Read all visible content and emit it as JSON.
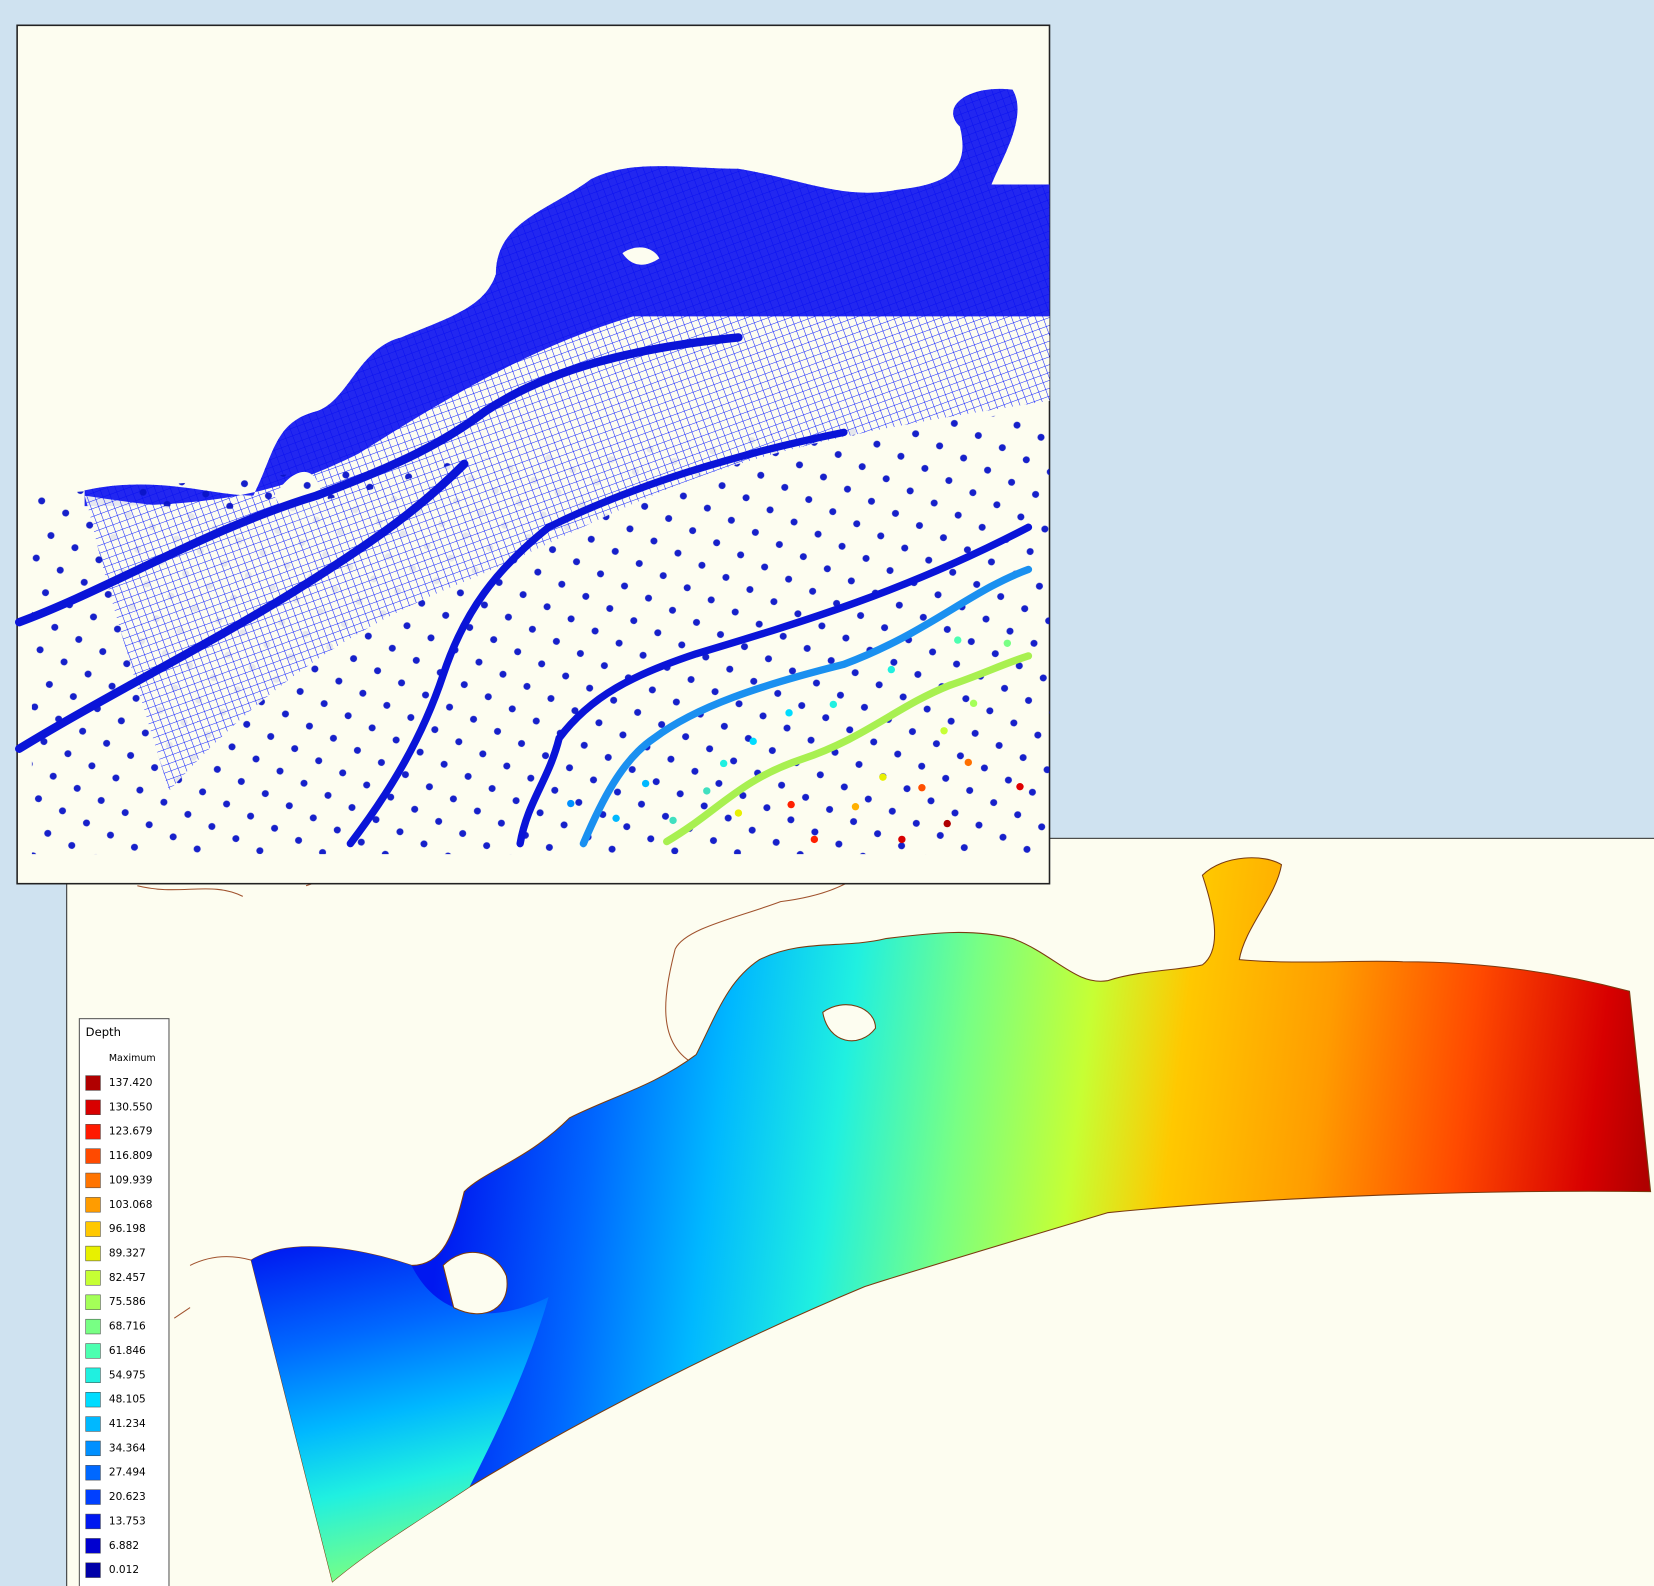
{
  "legend": {
    "title": "Depth",
    "header": "Maximum",
    "items": [
      {
        "label": "137.420",
        "color": "#b00000"
      },
      {
        "label": "130.550",
        "color": "#d80000"
      },
      {
        "label": "123.679",
        "color": "#ff1a00"
      },
      {
        "label": "116.809",
        "color": "#ff4a00"
      },
      {
        "label": "109.939",
        "color": "#ff7400"
      },
      {
        "label": "103.068",
        "color": "#ff9c00"
      },
      {
        "label": "96.198",
        "color": "#ffc800"
      },
      {
        "label": "89.327",
        "color": "#e8f000"
      },
      {
        "label": "82.457",
        "color": "#c6ff34"
      },
      {
        "label": "75.586",
        "color": "#a4ff58"
      },
      {
        "label": "68.716",
        "color": "#78ff84"
      },
      {
        "label": "61.846",
        "color": "#4cffb0"
      },
      {
        "label": "54.975",
        "color": "#20f0e0"
      },
      {
        "label": "48.105",
        "color": "#00dcff"
      },
      {
        "label": "41.234",
        "color": "#00b8ff"
      },
      {
        "label": "34.364",
        "color": "#0090ff"
      },
      {
        "label": "27.494",
        "color": "#0068ff"
      },
      {
        "label": "20.623",
        "color": "#0040ff"
      },
      {
        "label": "13.753",
        "color": "#0018f0"
      },
      {
        "label": "6.882",
        "color": "#0000d0"
      },
      {
        "label": "0.012",
        "color": "#0000a8"
      }
    ],
    "bottom_color": "#000080"
  }
}
